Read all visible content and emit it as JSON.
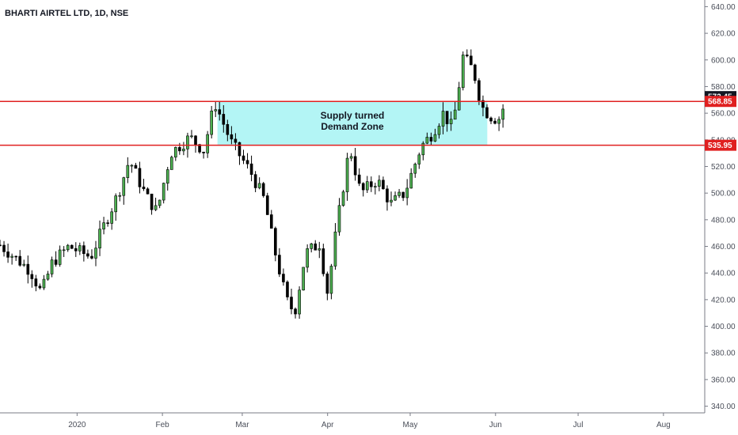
{
  "chart_data": {
    "type": "candlestick",
    "title": "BHARTI AIRTEL LTD, 1D, NSE",
    "y_range": [
      335,
      645
    ],
    "y_ticks": [
      "640.00",
      "620.00",
      "600.00",
      "580.00",
      "560.00",
      "540.00",
      "520.00",
      "500.00",
      "480.00",
      "460.00",
      "440.00",
      "420.00",
      "400.00",
      "380.00",
      "360.00",
      "340.00"
    ],
    "x_ticks": [
      {
        "label": "2020",
        "day": 21
      },
      {
        "label": "Feb",
        "day": 52
      },
      {
        "label": "Mar",
        "day": 81
      },
      {
        "label": "Apr",
        "day": 112
      },
      {
        "label": "May",
        "day": 142
      },
      {
        "label": "Jun",
        "day": 173
      },
      {
        "label": "Jul",
        "day": 203
      },
      {
        "label": "Aug",
        "day": 234
      }
    ],
    "x_range_days": [
      -7,
      249
    ],
    "grid": false,
    "colors": {
      "up": "#4caf50",
      "down": "#000000",
      "line": "#e02020",
      "zone": "#b3f5f5",
      "current_tag": "#131722",
      "level_tag": "#e02020"
    },
    "zone": {
      "label_line1": "Supply turned",
      "label_line2": "Demand Zone",
      "top": 568.85,
      "bottom": 535.95,
      "start_day": 72,
      "end_day": 170
    },
    "levels": [
      {
        "value": 568.85,
        "label": "568.85"
      },
      {
        "value": 535.95,
        "label": "535.95"
      }
    ],
    "current_price": {
      "value": 572.45,
      "label": "572.45"
    },
    "anchors": [
      [
        -7,
        461
      ],
      [
        4,
        442
      ],
      [
        8,
        425
      ],
      [
        12,
        448
      ],
      [
        18,
        460
      ],
      [
        26,
        452
      ],
      [
        30,
        472
      ],
      [
        36,
        500
      ],
      [
        40,
        525
      ],
      [
        46,
        498
      ],
      [
        50,
        486
      ],
      [
        55,
        530
      ],
      [
        62,
        542
      ],
      [
        67,
        532
      ],
      [
        71,
        568
      ],
      [
        77,
        538
      ],
      [
        84,
        516
      ],
      [
        89,
        495
      ],
      [
        93,
        455
      ],
      [
        97,
        420
      ],
      [
        100,
        410
      ],
      [
        104,
        455
      ],
      [
        109,
        462
      ],
      [
        112,
        425
      ],
      [
        115,
        470
      ],
      [
        120,
        535
      ],
      [
        124,
        500
      ],
      [
        130,
        510
      ],
      [
        135,
        492
      ],
      [
        140,
        500
      ],
      [
        146,
        535
      ],
      [
        150,
        545
      ],
      [
        154,
        560
      ],
      [
        157,
        550
      ],
      [
        159,
        568
      ],
      [
        161,
        603
      ],
      [
        165,
        592
      ],
      [
        168,
        565
      ],
      [
        171,
        558
      ],
      [
        174,
        555
      ],
      [
        176,
        565
      ]
    ]
  }
}
